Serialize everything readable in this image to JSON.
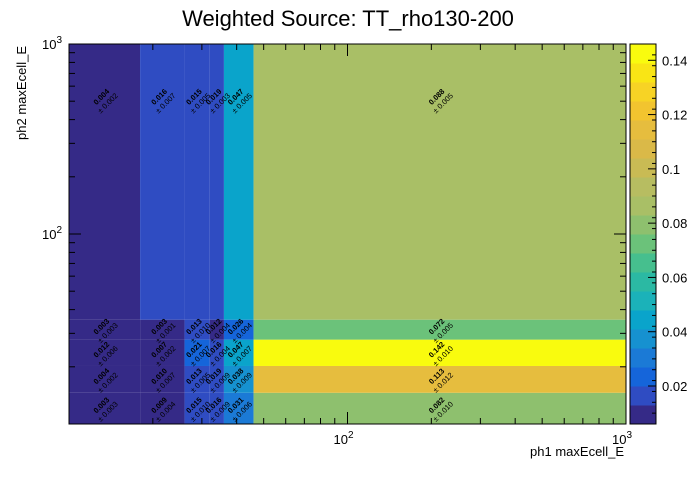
{
  "chart_data": {
    "type": "heatmap",
    "title": "Weighted Source: TT_rho130-200",
    "xlabel": "ph1 maxEcell_E",
    "ylabel": "ph2 maxEcell_E",
    "log_x": true,
    "log_y": true,
    "xlim": [
      10,
      1000
    ],
    "ylim": [
      10,
      1000
    ],
    "x_tick_labels": [
      {
        "value": 100,
        "label": "10",
        "exp": "2"
      },
      {
        "value": 1000,
        "label": "10",
        "exp": "3"
      }
    ],
    "y_tick_labels": [
      {
        "value": 100,
        "label": "10",
        "exp": "2"
      },
      {
        "value": 1000,
        "label": "10",
        "exp": "3"
      }
    ],
    "x_edges": [
      10,
      18,
      26,
      32,
      36,
      46,
      1000
    ],
    "y_edges": [
      10,
      14.6,
      20.2,
      27.8,
      35.4,
      1000
    ],
    "z_range": [
      0.006,
      0.146
    ],
    "colorbar_ticks": [
      "0.02",
      "0.04",
      "0.06",
      "0.08",
      "0.1",
      "0.12",
      "0.14"
    ],
    "colorbar_tick_values": [
      0.02,
      0.04,
      0.06,
      0.08,
      0.1,
      0.12,
      0.14
    ],
    "palette": [
      "#352a87",
      "#2f4cc2",
      "#1565da",
      "#1b7ad6",
      "#1691d0",
      "#0aa4cb",
      "#1bb2b9",
      "#2bb9a3",
      "#46bf8e",
      "#6bc27a",
      "#8ec06e",
      "#a9bf66",
      "#b7bd61",
      "#c9bb54",
      "#dab948",
      "#e6bd3e",
      "#f2c42f",
      "#f7d325",
      "#f9e515",
      "#f9fb0e"
    ],
    "cells": [
      {
        "ix": 0,
        "iy": 0,
        "value": 0.003,
        "label": "0.003",
        "err": "± 0.003"
      },
      {
        "ix": 1,
        "iy": 0,
        "value": 0.009,
        "label": "0.009",
        "err": "± 0.004"
      },
      {
        "ix": 2,
        "iy": 0,
        "value": 0.015,
        "label": "0.015",
        "err": "± 0.010"
      },
      {
        "ix": 3,
        "iy": 0,
        "value": 0.016,
        "label": "0.016",
        "err": "± 0.009"
      },
      {
        "ix": 4,
        "iy": 0,
        "value": 0.031,
        "label": "0.031",
        "err": "± 0.006"
      },
      {
        "ix": 5,
        "iy": 0,
        "value": 0.082,
        "label": "0.082",
        "err": "± 0.010"
      },
      {
        "ix": 0,
        "iy": 1,
        "value": 0.004,
        "label": "0.004",
        "err": "± 0.002"
      },
      {
        "ix": 1,
        "iy": 1,
        "value": 0.01,
        "label": "0.010",
        "err": "± 0.007"
      },
      {
        "ix": 2,
        "iy": 1,
        "value": 0.013,
        "label": "0.013",
        "err": "± 0.005"
      },
      {
        "ix": 3,
        "iy": 1,
        "value": 0.019,
        "label": "0.019",
        "err": "± 0.009"
      },
      {
        "ix": 4,
        "iy": 1,
        "value": 0.038,
        "label": "0.038",
        "err": "± 0.009"
      },
      {
        "ix": 5,
        "iy": 1,
        "value": 0.113,
        "label": "0.113",
        "err": "± 0.012"
      },
      {
        "ix": 0,
        "iy": 2,
        "value": 0.012,
        "label": "0.012",
        "err": "± 0.006"
      },
      {
        "ix": 1,
        "iy": 2,
        "value": 0.007,
        "label": "0.007",
        "err": "± 0.002"
      },
      {
        "ix": 2,
        "iy": 2,
        "value": 0.021,
        "label": "0.021",
        "err": "± 0.007"
      },
      {
        "ix": 3,
        "iy": 2,
        "value": 0.016,
        "label": "0.016",
        "err": "± 0.004"
      },
      {
        "ix": 4,
        "iy": 2,
        "value": 0.047,
        "label": "0.047",
        "err": "± 0.007"
      },
      {
        "ix": 5,
        "iy": 2,
        "value": 0.142,
        "label": "0.142",
        "err": "± 0.010"
      },
      {
        "ix": 0,
        "iy": 3,
        "value": 0.003,
        "label": "0.003",
        "err": "± 0.003"
      },
      {
        "ix": 1,
        "iy": 3,
        "value": 0.003,
        "label": "0.003",
        "err": "± 0.001"
      },
      {
        "ix": 2,
        "iy": 3,
        "value": 0.013,
        "label": "0.013",
        "err": "± 0.010"
      },
      {
        "ix": 3,
        "iy": 3,
        "value": 0.012,
        "label": "0.012",
        "err": "± 0.004"
      },
      {
        "ix": 4,
        "iy": 3,
        "value": 0.026,
        "label": "0.026",
        "err": "± 0.004"
      },
      {
        "ix": 5,
        "iy": 3,
        "value": 0.072,
        "label": "0.072",
        "err": "± 0.005"
      },
      {
        "ix": 0,
        "iy": 4,
        "value": 0.004,
        "label": "0.004",
        "err": "± 0.002"
      },
      {
        "ix": 1,
        "iy": 4,
        "value": 0.016,
        "label": "0.016",
        "err": "± 0.007"
      },
      {
        "ix": 2,
        "iy": 4,
        "value": 0.015,
        "label": "0.015",
        "err": "± 0.005"
      },
      {
        "ix": 3,
        "iy": 4,
        "value": 0.019,
        "label": "0.019",
        "err": "± 0.003"
      },
      {
        "ix": 4,
        "iy": 4,
        "value": 0.047,
        "label": "0.047",
        "err": "± 0.005"
      },
      {
        "ix": 5,
        "iy": 4,
        "value": 0.088,
        "label": "0.088",
        "err": "± 0.005"
      }
    ]
  }
}
